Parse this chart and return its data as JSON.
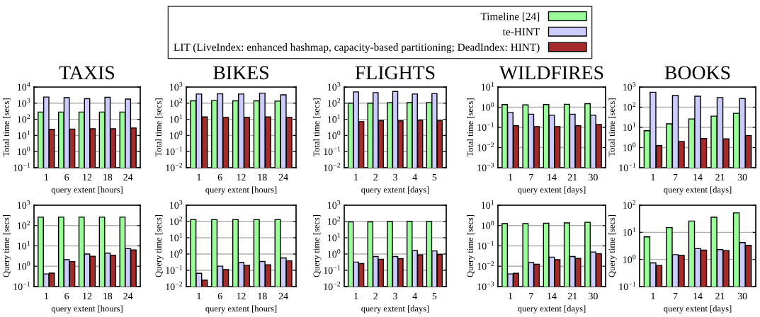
{
  "chart_data": [
    {
      "type": "bar",
      "title": "TAXIS",
      "xlabel": "query extent [hours]",
      "ylabel": "Total time [secs]",
      "categories": [
        "1",
        "6",
        "12",
        "18",
        "24"
      ],
      "log": true,
      "grid": "y",
      "legend": "top",
      "ylim": [
        0.1,
        10000
      ],
      "yticks": [
        {
          "value": 0.1,
          "label": "10$^{−1}$"
        },
        {
          "value": 1,
          "label": "10$^{0}$"
        },
        {
          "value": 10,
          "label": "10$^{1}$"
        },
        {
          "value": 100,
          "label": "10$^{2}$"
        },
        {
          "value": 1000,
          "label": "10$^{3}$"
        },
        {
          "value": 10000,
          "label": "10$^{4}$"
        }
      ],
      "series": [
        {
          "name": "Timeline [24]",
          "color": "#99ff99",
          "values": [
            280,
            280,
            280,
            280,
            280
          ]
        },
        {
          "name": "te-HINT",
          "color": "#ccccff",
          "values": [
            2400,
            2200,
            1900,
            2300,
            1800
          ]
        },
        {
          "name": "LIT (LiveIndex: enhanced hashmap, capacity-based partitioning; DeadIndex: HINT)",
          "color": "#a52a2a",
          "values": [
            24,
            25,
            26,
            26,
            29
          ]
        }
      ]
    },
    {
      "type": "bar",
      "title": "BIKES",
      "xlabel": "query extent [hours]",
      "ylabel": "Total time [secs]",
      "categories": [
        "1",
        "6",
        "12",
        "18",
        "24"
      ],
      "log": true,
      "grid": "y",
      "ylim": [
        0.01,
        1000
      ],
      "yticks": [
        {
          "value": 0.01,
          "label": "10$^{−2}$"
        },
        {
          "value": 0.1,
          "label": "10$^{−1}$"
        },
        {
          "value": 1,
          "label": "10$^{0}$"
        },
        {
          "value": 10,
          "label": "10$^{1}$"
        },
        {
          "value": 100,
          "label": "10$^{2}$"
        },
        {
          "value": 1000,
          "label": "10$^{3}$"
        }
      ],
      "series": [
        {
          "color": "#99ff99",
          "values": [
            140,
            145,
            140,
            140,
            135
          ]
        },
        {
          "color": "#ccccff",
          "values": [
            370,
            380,
            370,
            420,
            330
          ]
        },
        {
          "color": "#a52a2a",
          "values": [
            14,
            13,
            13,
            14,
            13
          ]
        }
      ]
    },
    {
      "type": "bar",
      "title": "FLIGHTS",
      "xlabel": "query extent [days]",
      "ylabel": "Total time [secs]",
      "categories": [
        "1",
        "2",
        "3",
        "4",
        "5"
      ],
      "log": true,
      "grid": "y",
      "ylim": [
        0.01,
        1000
      ],
      "yticks": [
        {
          "value": 0.01,
          "label": "10$^{−2}$"
        },
        {
          "value": 0.1,
          "label": "10$^{−1}$"
        },
        {
          "value": 1,
          "label": "10$^{0}$"
        },
        {
          "value": 10,
          "label": "10$^{1}$"
        },
        {
          "value": 100,
          "label": "10$^{2}$"
        },
        {
          "value": 1000,
          "label": "10$^{3}$"
        }
      ],
      "series": [
        {
          "color": "#99ff99",
          "values": [
            100,
            100,
            105,
            108,
            110
          ]
        },
        {
          "color": "#ccccff",
          "values": [
            500,
            450,
            530,
            370,
            390
          ]
        },
        {
          "color": "#a52a2a",
          "values": [
            7.2,
            8.3,
            8,
            8.8,
            8.2
          ]
        }
      ]
    },
    {
      "type": "bar",
      "title": "WILDFIRES",
      "xlabel": "query extent [days]",
      "ylabel": "Total time [secs]",
      "categories": [
        "1",
        "7",
        "14",
        "21",
        "30"
      ],
      "log": true,
      "grid": "y",
      "ylim": [
        0.001,
        10
      ],
      "yticks": [
        {
          "value": 0.001,
          "label": "10$^{−3}$"
        },
        {
          "value": 0.01,
          "label": "10$^{−2}$"
        },
        {
          "value": 0.1,
          "label": "10$^{−1}$"
        },
        {
          "value": 1,
          "label": "10$^{0}$"
        },
        {
          "value": 10,
          "label": "10$^{1}$"
        }
      ],
      "series": [
        {
          "color": "#99ff99",
          "values": [
            1.35,
            1.3,
            1.35,
            1.4,
            1.5
          ]
        },
        {
          "color": "#ccccff",
          "values": [
            0.55,
            0.45,
            0.4,
            0.45,
            0.4
          ]
        },
        {
          "color": "#a52a2a",
          "values": [
            0.12,
            0.11,
            0.11,
            0.12,
            0.14
          ]
        }
      ]
    },
    {
      "type": "bar",
      "title": "BOOKS",
      "xlabel": "query extent [days]",
      "ylabel": "Total time [secs]",
      "categories": [
        "1",
        "7",
        "14",
        "21",
        "30"
      ],
      "log": true,
      "grid": "y",
      "ylim": [
        0.1,
        1000
      ],
      "yticks": [
        {
          "value": 0.1,
          "label": "10$^{−1}$"
        },
        {
          "value": 1,
          "label": "10$^{0}$"
        },
        {
          "value": 10,
          "label": "10$^{1}$"
        },
        {
          "value": 100,
          "label": "10$^{2}$"
        },
        {
          "value": 1000,
          "label": "10$^{3}$"
        }
      ],
      "series": [
        {
          "color": "#99ff99",
          "values": [
            6.8,
            15,
            26,
            36,
            50
          ]
        },
        {
          "color": "#ccccff",
          "values": [
            550,
            380,
            350,
            300,
            270
          ]
        },
        {
          "color": "#a52a2a",
          "values": [
            1.25,
            2.0,
            2.8,
            2.7,
            3.9
          ]
        }
      ]
    },
    {
      "type": "bar",
      "xlabel": "query extent [hours]",
      "ylabel": "Query time [secs]",
      "categories": [
        "1",
        "6",
        "12",
        "18",
        "24"
      ],
      "log": true,
      "grid": "y",
      "ylim": [
        0.1,
        1000
      ],
      "yticks": [
        {
          "value": 0.1,
          "label": "10$^{−1}$"
        },
        {
          "value": 1,
          "label": "10$^{0}$"
        },
        {
          "value": 10,
          "label": "10$^{1}$"
        },
        {
          "value": 100,
          "label": "10$^{2}$"
        },
        {
          "value": 1000,
          "label": "10$^{3}$"
        }
      ],
      "series": [
        {
          "color": "#99ff99",
          "values": [
            260,
            260,
            260,
            260,
            260
          ]
        },
        {
          "color": "#ccccff",
          "values": [
            0.42,
            2.1,
            4.0,
            4.4,
            7.3
          ]
        },
        {
          "color": "#a52a2a",
          "values": [
            0.46,
            1.7,
            3.1,
            3.5,
            6.3
          ]
        }
      ]
    },
    {
      "type": "bar",
      "xlabel": "query extent [hours]",
      "ylabel": "Query time [secs]",
      "categories": [
        "1",
        "6",
        "12",
        "18",
        "24"
      ],
      "log": true,
      "grid": "y",
      "ylim": [
        0.01,
        1000
      ],
      "yticks": [
        {
          "value": 0.01,
          "label": "10$^{−2}$"
        },
        {
          "value": 0.1,
          "label": "10$^{−1}$"
        },
        {
          "value": 1,
          "label": "10$^{0}$"
        },
        {
          "value": 10,
          "label": "10$^{1}$"
        },
        {
          "value": 100,
          "label": "10$^{2}$"
        },
        {
          "value": 1000,
          "label": "10$^{3}$"
        }
      ],
      "series": [
        {
          "color": "#99ff99",
          "values": [
            130,
            130,
            130,
            130,
            130
          ]
        },
        {
          "color": "#ccccff",
          "values": [
            0.065,
            0.18,
            0.3,
            0.35,
            0.58
          ]
        },
        {
          "color": "#a52a2a",
          "values": [
            0.025,
            0.11,
            0.2,
            0.22,
            0.38
          ]
        }
      ]
    },
    {
      "type": "bar",
      "xlabel": "query extent [days]",
      "ylabel": "Query time [secs]",
      "categories": [
        "1",
        "2",
        "3",
        "4",
        "5"
      ],
      "log": true,
      "grid": "y",
      "ylim": [
        0.01,
        1000
      ],
      "yticks": [
        {
          "value": 0.01,
          "label": "10$^{−2}$"
        },
        {
          "value": 0.1,
          "label": "10$^{−1}$"
        },
        {
          "value": 1,
          "label": "10$^{0}$"
        },
        {
          "value": 10,
          "label": "10$^{1}$"
        },
        {
          "value": 100,
          "label": "10$^{2}$"
        },
        {
          "value": 1000,
          "label": "10$^{3}$"
        }
      ],
      "series": [
        {
          "color": "#99ff99",
          "values": [
            95,
            95,
            100,
            102,
            102
          ]
        },
        {
          "color": "#ccccff",
          "values": [
            0.32,
            0.7,
            0.7,
            1.6,
            1.55
          ]
        },
        {
          "color": "#a52a2a",
          "values": [
            0.26,
            0.48,
            0.52,
            0.88,
            0.95
          ]
        }
      ]
    },
    {
      "type": "bar",
      "xlabel": "query extent [days]",
      "ylabel": "Query time [secs]",
      "categories": [
        "1",
        "7",
        "14",
        "21",
        "30"
      ],
      "log": true,
      "grid": "y",
      "ylim": [
        0.001,
        10
      ],
      "yticks": [
        {
          "value": 0.001,
          "label": "10$^{−3}$"
        },
        {
          "value": 0.01,
          "label": "10$^{−2}$"
        },
        {
          "value": 0.1,
          "label": "10$^{−1}$"
        },
        {
          "value": 1,
          "label": "10$^{0}$"
        },
        {
          "value": 10,
          "label": "10$^{1}$"
        }
      ],
      "series": [
        {
          "color": "#99ff99",
          "values": [
            1.25,
            1.25,
            1.3,
            1.35,
            1.45
          ]
        },
        {
          "color": "#ccccff",
          "values": [
            0.0042,
            0.015,
            0.028,
            0.03,
            0.05
          ]
        },
        {
          "color": "#a52a2a",
          "values": [
            0.0045,
            0.0125,
            0.021,
            0.024,
            0.041
          ]
        }
      ]
    },
    {
      "type": "bar",
      "xlabel": "query extent [days]",
      "ylabel": "Query time [secs]",
      "categories": [
        "1",
        "7",
        "14",
        "21",
        "30"
      ],
      "log": true,
      "grid": "y",
      "ylim": [
        0.1,
        100
      ],
      "yticks": [
        {
          "value": 0.1,
          "label": "10$^{−1}$"
        },
        {
          "value": 1,
          "label": "10$^{0}$"
        },
        {
          "value": 10,
          "label": "10$^{1}$"
        },
        {
          "value": 100,
          "label": "10$^{2}$"
        }
      ],
      "series": [
        {
          "color": "#99ff99",
          "values": [
            6.8,
            15,
            26,
            36,
            52
          ]
        },
        {
          "color": "#ccccff",
          "values": [
            0.75,
            1.5,
            2.5,
            2.3,
            4.2
          ]
        },
        {
          "color": "#a52a2a",
          "values": [
            0.6,
            1.4,
            2.2,
            2.1,
            3.3
          ]
        }
      ]
    }
  ]
}
